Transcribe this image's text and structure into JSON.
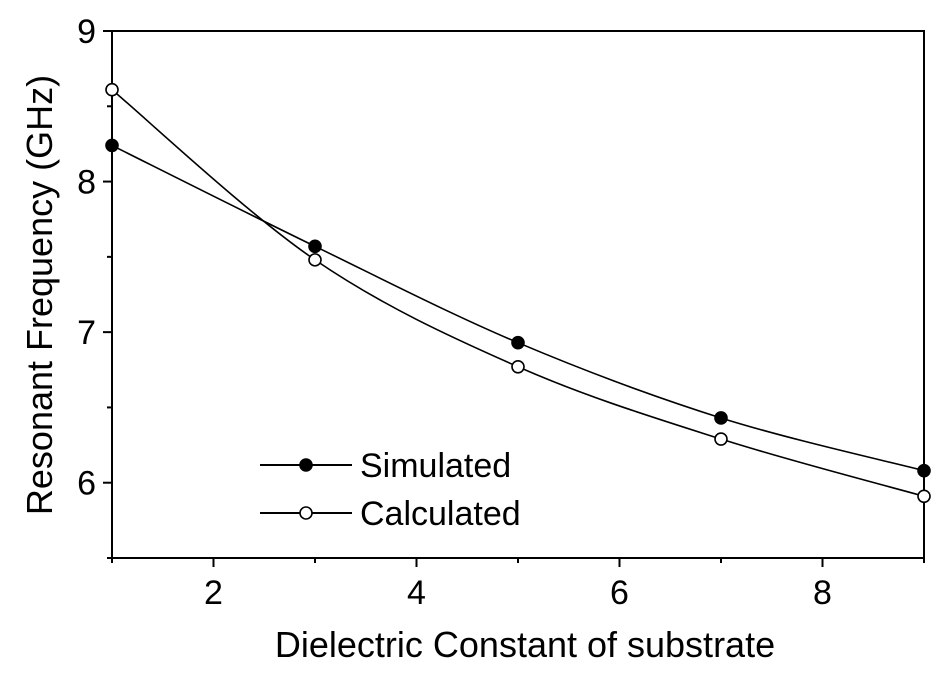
{
  "chart_data": {
    "type": "line",
    "xlabel": "Dielectric Constant of substrate",
    "ylabel": "Resonant Frequency (GHz)",
    "xlim": [
      1,
      9
    ],
    "ylim": [
      5.5,
      9
    ],
    "x_ticks": [
      2,
      4,
      6,
      8
    ],
    "y_ticks": [
      6,
      7,
      8,
      9
    ],
    "grid": false,
    "legend_position": "bottom-left",
    "x": [
      1,
      3,
      5,
      7,
      9
    ],
    "series": [
      {
        "name": "Simulated",
        "marker": "filled-circle",
        "values": [
          8.24,
          7.57,
          6.93,
          6.43,
          6.08
        ]
      },
      {
        "name": "Calculated",
        "marker": "open-circle",
        "values": [
          8.61,
          7.48,
          6.77,
          6.29,
          5.91
        ]
      }
    ],
    "colors": {
      "line": "#000000",
      "background": "#ffffff"
    }
  }
}
